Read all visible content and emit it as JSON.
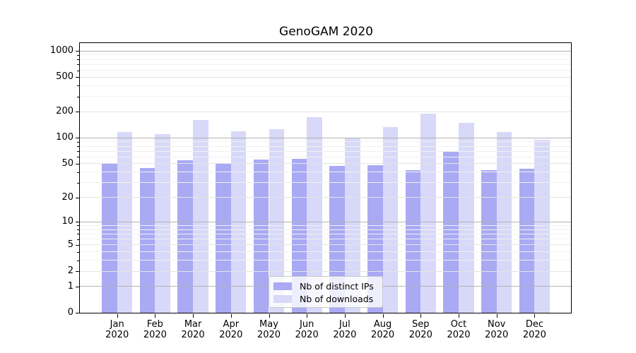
{
  "title": "GenoGAM 2020",
  "chart_data": {
    "type": "bar",
    "title": "GenoGAM 2020",
    "yscale": "log1p",
    "ylim": [
      0,
      1233
    ],
    "y_ticks": [
      0,
      1,
      2,
      5,
      10,
      20,
      50,
      100,
      200,
      500,
      1000
    ],
    "grid": "both",
    "x_months": [
      "Jan",
      "Feb",
      "Mar",
      "Apr",
      "May",
      "Jun",
      "Jul",
      "Aug",
      "Sep",
      "Oct",
      "Nov",
      "Dec"
    ],
    "x_year": "2020",
    "series": [
      {
        "name": "Nb of distinct IPs",
        "color": "#a9a9f4",
        "values": [
          50,
          45,
          55,
          51,
          56,
          57,
          47,
          48,
          42,
          69,
          42,
          44
        ]
      },
      {
        "name": "Nb of downloads",
        "color": "#d8d8f9",
        "values": [
          116,
          111,
          160,
          120,
          126,
          175,
          100,
          134,
          190,
          150,
          116,
          96
        ]
      }
    ],
    "legend": {
      "position": "lower center",
      "entries": [
        "Nb of distinct IPs",
        "Nb of downloads"
      ]
    },
    "colors": {
      "grid_major": "#b3b3b3",
      "grid_mid": "#e4e4e4",
      "grid_minor": "#f1f1f1",
      "axis": "#000000",
      "background": "#ffffff"
    }
  }
}
